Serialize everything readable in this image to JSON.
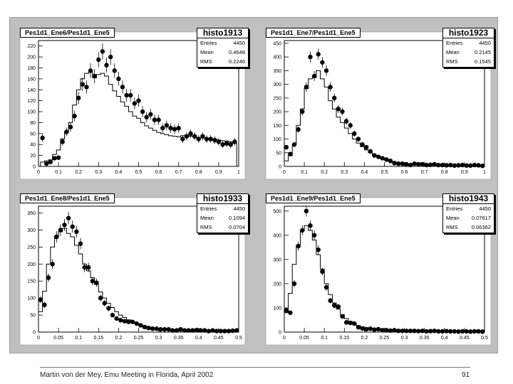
{
  "panels": [
    {
      "title": "Pes1d1_Ene6/Pes1d1_Ene5",
      "stats": {
        "name": "histo1913",
        "entries_label": "Entries",
        "entries": "4450",
        "mean_label": "Mean",
        "mean": "0.4648",
        "rms_label": "RMS",
        "rms": "0.2246"
      }
    },
    {
      "title": "Pes1d1_Ene7/Pes1d1_Ene5",
      "stats": {
        "name": "histo1923",
        "entries_label": "Entries",
        "entries": "4450",
        "mean_label": "Mean",
        "mean": "0.2145",
        "rms_label": "RMS",
        "rms": "0.1545"
      }
    },
    {
      "title": "Pes1d1_Ene8/Pes1d1_Ene5",
      "stats": {
        "name": "histo1933",
        "entries_label": "Entries",
        "entries": "4450",
        "mean_label": "Mean",
        "mean": "0.1094",
        "rms_label": "RMS",
        "rms": "0.0704"
      }
    },
    {
      "title": "Pes1d1_Ene9/Pes1d1_Ene5",
      "stats": {
        "name": "histo1943",
        "entries_label": "Entries",
        "entries": "4450",
        "mean_label": "Mean",
        "mean": "0.07617",
        "rms_label": "RMS",
        "rms": "0.06362"
      }
    }
  ],
  "footer": {
    "text": "Martin von der Mey, Emu Meeting in Florida, April 2002",
    "page": "91"
  },
  "colors": {
    "pad": "#c0c0c0",
    "frame": "#ffffff",
    "ink": "#000000",
    "accent_rule": "#7aa6d8"
  },
  "chart_data": [
    {
      "type": "scatter",
      "title": "Pes1d1_Ene6/Pes1d1_Ene5",
      "xlim": [
        0,
        1
      ],
      "ylim": [
        0,
        230
      ],
      "xticks": [
        "0",
        "0.1",
        "0.2",
        "0.3",
        "0.4",
        "0.5",
        "0.6",
        "0.7",
        "0.8",
        "0.9",
        "1"
      ],
      "yticks": [
        "0",
        "20",
        "40",
        "60",
        "80",
        "100",
        "120",
        "140",
        "160",
        "180",
        "200",
        "220"
      ],
      "x": [
        0.02,
        0.04,
        0.06,
        0.08,
        0.1,
        0.12,
        0.14,
        0.16,
        0.18,
        0.2,
        0.22,
        0.24,
        0.26,
        0.28,
        0.3,
        0.32,
        0.34,
        0.36,
        0.38,
        0.4,
        0.42,
        0.44,
        0.46,
        0.48,
        0.5,
        0.52,
        0.54,
        0.56,
        0.58,
        0.6,
        0.62,
        0.64,
        0.66,
        0.68,
        0.7,
        0.72,
        0.74,
        0.76,
        0.78,
        0.8,
        0.82,
        0.84,
        0.86,
        0.88,
        0.9,
        0.92,
        0.94,
        0.96,
        0.98
      ],
      "series": [
        {
          "values": [
            52,
            5,
            8,
            15,
            16,
            45,
            63,
            72,
            92,
            125,
            150,
            145,
            175,
            165,
            195,
            210,
            185,
            200,
            175,
            160,
            145,
            130,
            130,
            115,
            120,
            100,
            90,
            95,
            85,
            85,
            70,
            75,
            70,
            68,
            70,
            50,
            55,
            60,
            55,
            50,
            55,
            50,
            50,
            48,
            45,
            40,
            42,
            40,
            45
          ]
        }
      ],
      "reference_values": [
        8,
        10,
        12,
        22,
        30,
        50,
        62,
        80,
        112,
        140,
        160,
        170,
        172,
        162,
        168,
        170,
        165,
        150,
        138,
        128,
        118,
        110,
        100,
        92,
        88,
        80,
        74,
        70,
        66,
        62,
        60,
        58,
        56,
        55,
        54,
        56,
        57,
        55,
        54,
        52,
        52,
        51,
        50,
        50,
        48,
        47,
        46,
        45,
        42
      ]
    },
    {
      "type": "scatter",
      "title": "Pes1d1_Ene7/Pes1d1_Ene5",
      "xlim": [
        0,
        1
      ],
      "ylim": [
        0,
        460
      ],
      "xticks": [
        "0",
        "0.1",
        "0.2",
        "0.3",
        "0.4",
        "0.5",
        "0.6",
        "0.7",
        "0.8",
        "0.9",
        "1"
      ],
      "yticks": [
        "0",
        "50",
        "100",
        "150",
        "200",
        "250",
        "300",
        "350",
        "400",
        "450"
      ],
      "x": [
        0.01,
        0.03,
        0.05,
        0.07,
        0.09,
        0.11,
        0.13,
        0.15,
        0.17,
        0.19,
        0.21,
        0.23,
        0.25,
        0.27,
        0.29,
        0.31,
        0.33,
        0.35,
        0.37,
        0.39,
        0.41,
        0.43,
        0.45,
        0.47,
        0.49,
        0.51,
        0.53,
        0.55,
        0.57,
        0.59,
        0.61,
        0.63,
        0.65,
        0.67,
        0.69,
        0.71,
        0.73,
        0.75,
        0.77,
        0.79,
        0.81,
        0.83,
        0.85,
        0.87,
        0.89,
        0.91,
        0.93,
        0.95,
        0.97,
        0.99
      ],
      "series": [
        {
          "values": [
            70,
            45,
            80,
            135,
            200,
            290,
            400,
            330,
            410,
            380,
            350,
            290,
            250,
            210,
            200,
            165,
            150,
            120,
            100,
            80,
            70,
            55,
            40,
            35,
            30,
            25,
            20,
            12,
            10,
            10,
            8,
            5,
            10,
            8,
            8,
            5,
            6,
            8,
            5,
            5,
            4,
            5,
            3,
            4,
            5,
            3,
            3,
            5,
            4,
            2
          ]
        }
      ],
      "reference_values": [
        20,
        40,
        80,
        150,
        210,
        285,
        320,
        325,
        350,
        320,
        290,
        240,
        210,
        180,
        160,
        140,
        120,
        100,
        85,
        72,
        60,
        50,
        42,
        36,
        30,
        24,
        20,
        16,
        13,
        11,
        9,
        8,
        7,
        6,
        6,
        5,
        5,
        5,
        4,
        4,
        4,
        4,
        3,
        3,
        3,
        3,
        3,
        2,
        2,
        2
      ]
    },
    {
      "type": "scatter",
      "title": "Pes1d1_Ene8/Pes1d1_Ene5",
      "xlim": [
        0,
        0.5
      ],
      "ylim": [
        0,
        370
      ],
      "xticks": [
        "0",
        "0.05",
        "0.1",
        "0.15",
        "0.2",
        "0.25",
        "0.3",
        "0.35",
        "0.4",
        "0.45",
        "0.5"
      ],
      "yticks": [
        "0",
        "50",
        "100",
        "150",
        "200",
        "250",
        "300",
        "350"
      ],
      "x": [
        0.005,
        0.015,
        0.025,
        0.035,
        0.045,
        0.055,
        0.065,
        0.075,
        0.085,
        0.095,
        0.105,
        0.115,
        0.125,
        0.135,
        0.145,
        0.155,
        0.165,
        0.175,
        0.185,
        0.195,
        0.205,
        0.215,
        0.225,
        0.235,
        0.245,
        0.255,
        0.265,
        0.275,
        0.285,
        0.295,
        0.305,
        0.315,
        0.325,
        0.335,
        0.345,
        0.355,
        0.365,
        0.375,
        0.385,
        0.395,
        0.405,
        0.415,
        0.425,
        0.435,
        0.445,
        0.455,
        0.465,
        0.475,
        0.485,
        0.495
      ],
      "series": [
        {
          "values": [
            95,
            80,
            160,
            200,
            280,
            300,
            315,
            335,
            310,
            295,
            260,
            190,
            190,
            150,
            145,
            100,
            85,
            70,
            50,
            40,
            35,
            32,
            30,
            30,
            25,
            20,
            15,
            12,
            10,
            10,
            8,
            8,
            8,
            5,
            5,
            8,
            5,
            5,
            5,
            6,
            5,
            5,
            3,
            5,
            3,
            3,
            3,
            3,
            4,
            5
          ]
        }
      ],
      "reference_values": [
        60,
        120,
        200,
        250,
        280,
        295,
        305,
        290,
        280,
        255,
        230,
        200,
        180,
        160,
        140,
        118,
        100,
        85,
        72,
        60,
        50,
        43,
        36,
        30,
        25,
        21,
        18,
        15,
        12,
        10,
        9,
        8,
        7,
        6,
        6,
        5,
        5,
        5,
        4,
        4,
        4,
        4,
        3,
        3,
        3,
        3,
        3,
        3,
        2,
        2
      ]
    },
    {
      "type": "scatter",
      "title": "Pes1d1_Ene9/Pes1d1_Ene5",
      "xlim": [
        0,
        0.5
      ],
      "ylim": [
        0,
        520
      ],
      "xticks": [
        "0",
        "0.05",
        "0.1",
        "0.15",
        "0.2",
        "0.25",
        "0.3",
        "0.35",
        "0.4",
        "0.45",
        "0.5"
      ],
      "yticks": [
        "0",
        "100",
        "200",
        "300",
        "400",
        "500"
      ],
      "x": [
        0.005,
        0.015,
        0.025,
        0.035,
        0.045,
        0.055,
        0.065,
        0.075,
        0.085,
        0.095,
        0.105,
        0.115,
        0.125,
        0.135,
        0.145,
        0.155,
        0.165,
        0.175,
        0.185,
        0.195,
        0.205,
        0.215,
        0.225,
        0.235,
        0.245,
        0.255,
        0.265,
        0.275,
        0.285,
        0.295,
        0.305,
        0.315,
        0.325,
        0.335,
        0.345,
        0.355,
        0.365,
        0.375,
        0.385,
        0.395,
        0.405,
        0.415,
        0.425,
        0.435,
        0.445,
        0.455,
        0.465,
        0.475,
        0.485,
        0.495
      ],
      "series": [
        {
          "values": [
            90,
            80,
            200,
            355,
            420,
            500,
            440,
            400,
            340,
            250,
            185,
            130,
            110,
            105,
            65,
            40,
            38,
            35,
            20,
            15,
            12,
            14,
            10,
            12,
            8,
            8,
            6,
            8,
            5,
            5,
            5,
            5,
            5,
            4,
            5,
            3,
            4,
            5,
            3,
            3,
            4,
            3,
            3,
            2,
            3,
            3,
            2,
            3,
            3,
            2
          ]
        }
      ],
      "reference_values": [
        80,
        160,
        280,
        360,
        420,
        440,
        420,
        380,
        320,
        260,
        200,
        155,
        120,
        95,
        72,
        56,
        44,
        34,
        27,
        22,
        18,
        15,
        12,
        10,
        9,
        8,
        7,
        6,
        5,
        5,
        4,
        4,
        4,
        4,
        3,
        3,
        3,
        3,
        3,
        3,
        3,
        2,
        2,
        2,
        2,
        2,
        2,
        2,
        2,
        2
      ]
    }
  ]
}
